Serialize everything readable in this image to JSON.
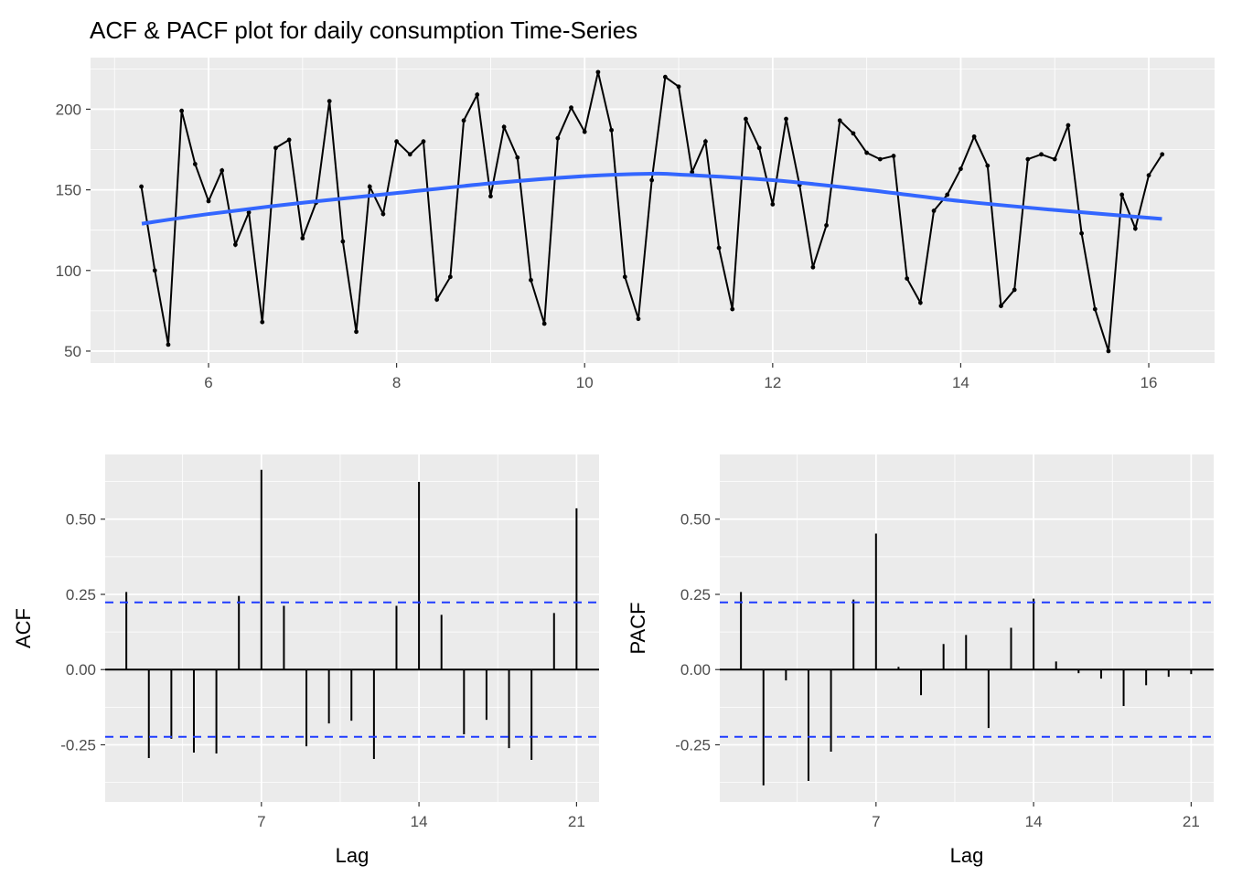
{
  "title": "ACF & PACF plot for daily consumption Time-Series",
  "colors": {
    "panel_bg": "#ebebeb",
    "grid": "#ffffff",
    "series": "#000000",
    "smooth": "#3366ff",
    "ci": "#1f3cff"
  },
  "chart_data": [
    {
      "type": "line",
      "xlim": [
        4.745,
        16.7
      ],
      "ylim": [
        42.6,
        232
      ],
      "x_ticks": [
        6,
        8,
        10,
        12,
        14,
        16
      ],
      "y_ticks": [
        50,
        100,
        150,
        200
      ],
      "x_start": 5.2857,
      "x_step": 0.142857,
      "values": [
        152,
        100,
        54,
        199,
        166,
        143,
        162,
        116,
        136,
        68,
        176,
        181,
        120,
        142,
        205,
        118,
        62,
        152,
        135,
        180,
        172,
        180,
        82,
        96,
        193,
        209,
        146,
        189,
        170,
        94,
        67,
        182,
        201,
        186,
        223,
        187,
        96,
        70,
        156,
        220,
        214,
        161,
        180,
        114,
        76,
        194,
        176,
        141,
        194,
        153,
        102,
        128,
        193,
        185,
        173,
        169,
        171,
        95,
        80,
        137,
        147,
        163,
        183,
        165,
        78,
        88,
        169,
        172,
        169,
        190,
        123,
        76,
        50,
        147,
        126,
        159,
        172
      ],
      "smooth": {
        "x": [
          5.29,
          6,
          7,
          8,
          9,
          10,
          10.7,
          11,
          12,
          13,
          14,
          15,
          16.14
        ],
        "y": [
          129,
          135,
          142,
          148,
          154,
          158.5,
          160,
          159.5,
          156,
          150,
          143,
          137.5,
          132
        ]
      },
      "grid": true
    },
    {
      "type": "bar",
      "ylabel": "ACF",
      "xlabel": "Lag",
      "xlim": [
        0.06,
        22.0
      ],
      "ylim": [
        -0.44,
        0.715
      ],
      "x_ticks": [
        7,
        14,
        21
      ],
      "y_ticks": [
        "-0.25",
        "0.00",
        "0.25",
        "0.50"
      ],
      "lags": [
        1,
        2,
        3,
        4,
        5,
        6,
        7,
        8,
        9,
        10,
        11,
        12,
        13,
        14,
        15,
        16,
        17,
        18,
        19,
        20,
        21
      ],
      "values": [
        0.258,
        -0.294,
        -0.23,
        -0.276,
        -0.279,
        0.245,
        0.664,
        0.212,
        -0.255,
        -0.179,
        -0.17,
        -0.297,
        0.212,
        0.624,
        0.182,
        -0.215,
        -0.167,
        -0.261,
        -0.3,
        0.188,
        0.536
      ],
      "ci": 0.2234,
      "grid": true
    },
    {
      "type": "bar",
      "ylabel": "PACF",
      "xlabel": "Lag",
      "xlim": [
        0.06,
        22.0
      ],
      "ylim": [
        -0.44,
        0.715
      ],
      "x_ticks": [
        7,
        14,
        21
      ],
      "y_ticks": [
        "-0.25",
        "0.00",
        "0.25",
        "0.50"
      ],
      "lags": [
        1,
        2,
        3,
        4,
        5,
        6,
        7,
        8,
        9,
        10,
        11,
        12,
        13,
        14,
        15,
        16,
        17,
        18,
        19,
        20,
        21
      ],
      "values": [
        0.258,
        -0.385,
        -0.036,
        -0.37,
        -0.273,
        0.233,
        0.452,
        0.009,
        -0.085,
        0.085,
        0.115,
        -0.194,
        0.139,
        0.236,
        0.027,
        -0.012,
        -0.03,
        -0.121,
        -0.052,
        -0.024,
        -0.015
      ],
      "ci": 0.2234,
      "grid": true
    }
  ]
}
